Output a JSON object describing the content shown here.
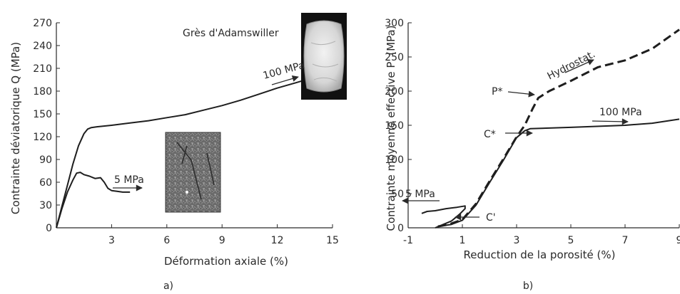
{
  "chart_data": [
    {
      "type": "line",
      "panel_label": "a)",
      "title": "Grès d'Adamswiller",
      "xlabel": "Déformation axiale (%)",
      "ylabel": "Contrainte déviatorique Q (MPa)",
      "xlim": [
        0,
        15
      ],
      "ylim": [
        0,
        270
      ],
      "xticks": [
        3,
        6,
        9,
        12,
        15
      ],
      "yticks": [
        0,
        30,
        60,
        90,
        120,
        150,
        180,
        210,
        240,
        270
      ],
      "series": [
        {
          "name": "100 MPa",
          "x": [
            0,
            0.3,
            0.6,
            0.9,
            1.2,
            1.5,
            1.7,
            1.9,
            2.2,
            3,
            4,
            5,
            6,
            7,
            8,
            9,
            10,
            11,
            12,
            13,
            13.7
          ],
          "y": [
            0,
            28,
            56,
            84,
            108,
            124,
            130,
            132,
            133,
            135,
            138,
            141,
            145,
            149,
            155,
            161,
            168,
            176,
            184,
            191,
            196
          ]
        },
        {
          "name": "5 MPa",
          "x": [
            0,
            0.3,
            0.6,
            0.9,
            1.1,
            1.3,
            1.5,
            1.8,
            2.1,
            2.4,
            2.6,
            2.8,
            3.0,
            3.3,
            3.6,
            3.9,
            4.0
          ],
          "y": [
            0,
            25,
            47,
            63,
            72,
            73,
            70,
            68,
            65,
            66,
            60,
            52,
            49,
            48,
            47,
            47,
            47
          ]
        }
      ],
      "annotations": [
        {
          "text": "100 MPa"
        },
        {
          "text": "5 MPa"
        }
      ]
    },
    {
      "type": "line",
      "panel_label": "b)",
      "xlabel": "Reduction de la porosité (%)",
      "ylabel": "Contrainte moyenne effective P' (MPa)",
      "xlim": [
        -1,
        9
      ],
      "ylim": [
        0,
        300
      ],
      "xticks": [
        -1,
        1,
        3,
        5,
        7,
        9
      ],
      "yticks": [
        0,
        50,
        100,
        150,
        200,
        250,
        300
      ],
      "series": [
        {
          "name": "Hydrostat.",
          "style": "dashed",
          "x": [
            0.1,
            0.5,
            1.0,
            1.5,
            2.0,
            2.5,
            3.0,
            3.3,
            3.6,
            3.8,
            4.2,
            5.0,
            6.0,
            7.0,
            8.0,
            9.0
          ],
          "y": [
            2,
            5,
            12,
            35,
            68,
            100,
            133,
            150,
            175,
            190,
            200,
            215,
            235,
            245,
            262,
            290
          ]
        },
        {
          "name": "100 MPa",
          "style": "solid",
          "x": [
            0.1,
            0.6,
            1.0,
            1.5,
            2.0,
            2.5,
            3.0,
            3.3,
            3.5,
            5.0,
            7.0,
            8.0,
            9.0
          ],
          "y": [
            2,
            5,
            11,
            33,
            66,
            98,
            132,
            142,
            145,
            147,
            150,
            153,
            159
          ]
        },
        {
          "name": "5 MPa",
          "style": "solid",
          "x": [
            0,
            0.3,
            0.6,
            0.9,
            1.1,
            1.1,
            0.8,
            0.4,
            0,
            -0.3,
            -0.5
          ],
          "y": [
            0,
            5,
            10,
            20,
            28,
            32,
            30,
            28,
            25,
            24,
            21
          ]
        }
      ],
      "annotations": [
        {
          "text": "P*"
        },
        {
          "text": "C*"
        },
        {
          "text": "C'"
        },
        {
          "text": "Hydrostat."
        },
        {
          "text": "100 MPa"
        },
        {
          "text": "5 MPa"
        }
      ]
    }
  ]
}
